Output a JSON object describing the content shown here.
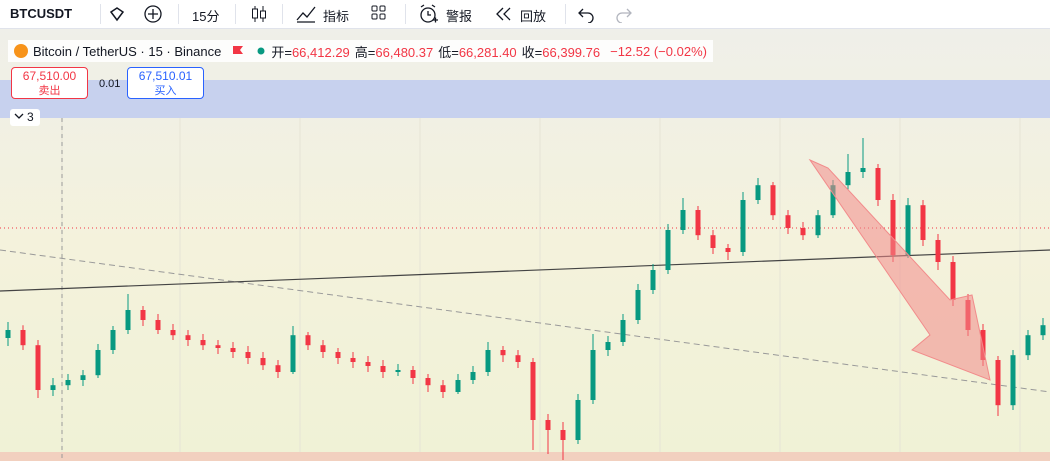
{
  "toolbar": {
    "symbol": "BTCUSDT",
    "interval": "15分",
    "indicators": "指标",
    "alerts": "警报",
    "replay": "回放"
  },
  "legend": {
    "title": "Bitcoin / TetherUS · 15 · Binance",
    "ohlc": [
      {
        "label": "开=",
        "value": "66,412.29"
      },
      {
        "label": "高=",
        "value": "66,480.37"
      },
      {
        "label": "低=",
        "value": "66,281.40"
      },
      {
        "label": "收=",
        "value": "66,399.76"
      }
    ],
    "change": "−12.52 (−0.02%)"
  },
  "trade": {
    "sell_price": "67,510.00",
    "sell_label": "卖出",
    "quantity": "0.01",
    "buy_price": "67,510.01",
    "buy_label": "买入"
  },
  "indicators_collapsed": "3",
  "chart_data": {
    "type": "candlestick",
    "ylim": [
      65672.5,
      66530
    ],
    "up_color": "#089981",
    "down_color": "#f23645",
    "ohlc": [
      [
        65980,
        66020,
        65960,
        66000
      ],
      [
        66000,
        66012,
        65950,
        65962
      ],
      [
        65962,
        65975,
        65830,
        65850
      ],
      [
        65850,
        65880,
        65835,
        65862
      ],
      [
        65862,
        65890,
        65850,
        65875
      ],
      [
        65875,
        65900,
        65860,
        65887
      ],
      [
        65887,
        65965,
        65880,
        65950
      ],
      [
        65950,
        66010,
        65940,
        66000
      ],
      [
        66000,
        66090,
        65990,
        66050
      ],
      [
        66050,
        66060,
        66010,
        66025
      ],
      [
        66025,
        66040,
        65990,
        66000
      ],
      [
        66000,
        66015,
        65975,
        65987
      ],
      [
        65987,
        66000,
        65960,
        65975
      ],
      [
        65975,
        65990,
        65950,
        65962
      ],
      [
        65962,
        65975,
        65940,
        65955
      ],
      [
        65955,
        65970,
        65930,
        65945
      ],
      [
        65945,
        65960,
        65915,
        65930
      ],
      [
        65930,
        65945,
        65900,
        65912
      ],
      [
        65912,
        65925,
        65880,
        65895
      ],
      [
        65895,
        66010,
        65890,
        65987
      ],
      [
        65987,
        65995,
        65950,
        65962
      ],
      [
        65962,
        65975,
        65930,
        65945
      ],
      [
        65945,
        65955,
        65915,
        65930
      ],
      [
        65930,
        65945,
        65905,
        65920
      ],
      [
        65920,
        65935,
        65895,
        65910
      ],
      [
        65910,
        65925,
        65880,
        65895
      ],
      [
        65895,
        65915,
        65885,
        65900
      ],
      [
        65900,
        65910,
        65865,
        65880
      ],
      [
        65880,
        65890,
        65845,
        65862
      ],
      [
        65862,
        65875,
        65830,
        65845
      ],
      [
        65845,
        65890,
        65840,
        65875
      ],
      [
        65875,
        65910,
        65865,
        65895
      ],
      [
        65895,
        65970,
        65885,
        65950
      ],
      [
        65950,
        65960,
        65920,
        65937
      ],
      [
        65937,
        65950,
        65905,
        65920
      ],
      [
        65920,
        65930,
        65700,
        65775
      ],
      [
        65775,
        65790,
        65690,
        65750
      ],
      [
        65750,
        65770,
        65675,
        65725
      ],
      [
        65725,
        65840,
        65715,
        65825
      ],
      [
        65825,
        65990,
        65815,
        65950
      ],
      [
        65950,
        65985,
        65935,
        65970
      ],
      [
        65970,
        66040,
        65960,
        66025
      ],
      [
        66025,
        66115,
        66015,
        66100
      ],
      [
        66100,
        66165,
        66090,
        66150
      ],
      [
        66150,
        66265,
        66140,
        66250
      ],
      [
        66250,
        66330,
        66240,
        66300
      ],
      [
        66300,
        66310,
        66225,
        66237
      ],
      [
        66237,
        66250,
        66190,
        66205
      ],
      [
        66205,
        66215,
        66175,
        66195
      ],
      [
        66195,
        66345,
        66185,
        66325
      ],
      [
        66325,
        66380,
        66315,
        66362
      ],
      [
        66362,
        66370,
        66275,
        66287
      ],
      [
        66287,
        66300,
        66240,
        66255
      ],
      [
        66255,
        66270,
        66225,
        66237
      ],
      [
        66237,
        66300,
        66230,
        66287
      ],
      [
        66287,
        66375,
        66280,
        66362
      ],
      [
        66362,
        66440,
        66350,
        66395
      ],
      [
        66395,
        66480,
        66380,
        66405
      ],
      [
        66405,
        66415,
        66310,
        66325
      ],
      [
        66325,
        66340,
        66170,
        66187
      ],
      [
        66187,
        66330,
        66180,
        66312
      ],
      [
        66312,
        66325,
        66210,
        66225
      ],
      [
        66225,
        66240,
        66150,
        66170
      ],
      [
        66170,
        66185,
        66060,
        66075
      ],
      [
        66075,
        66090,
        65985,
        66000
      ],
      [
        66000,
        66015,
        65910,
        65925
      ],
      [
        65925,
        65935,
        65785,
        65812
      ],
      [
        65812,
        65950,
        65800,
        65937
      ],
      [
        65937,
        66000,
        65925,
        65987
      ],
      [
        65987,
        66030,
        65975,
        66012
      ]
    ]
  }
}
